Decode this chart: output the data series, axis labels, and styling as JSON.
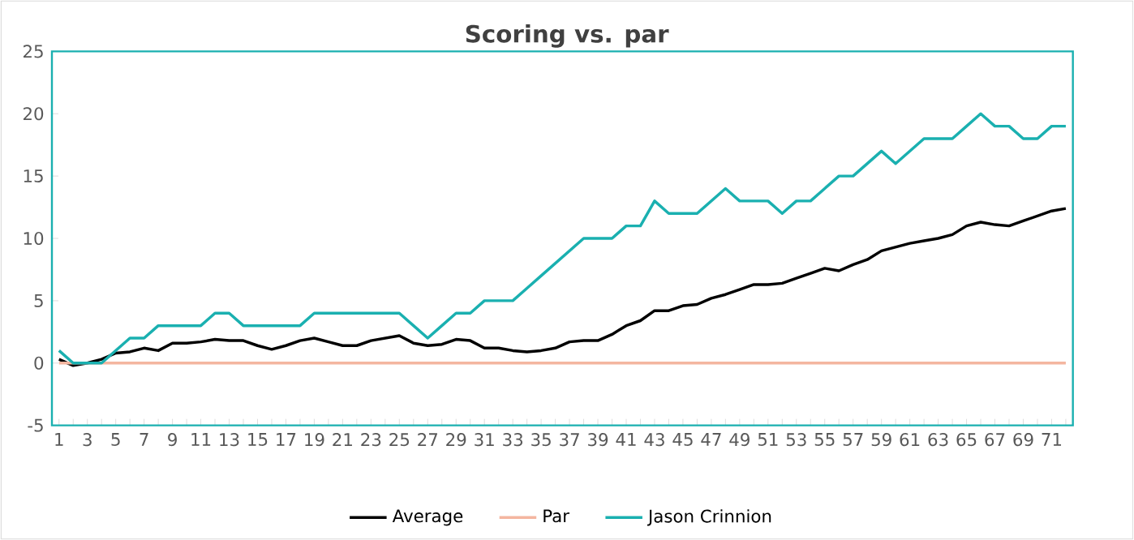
{
  "chart_data": {
    "type": "line",
    "title": "Scoring vs. par",
    "categories": [
      "1",
      null,
      "3",
      null,
      "5",
      null,
      "7",
      null,
      "9",
      null,
      "11",
      null,
      "13",
      null,
      "15",
      null,
      "17",
      null,
      "19",
      null,
      "21",
      null,
      "23",
      null,
      "25",
      null,
      "27",
      null,
      "29",
      null,
      "31",
      null,
      "33",
      null,
      "35",
      null,
      "37",
      null,
      "39",
      null,
      "41",
      null,
      "43",
      null,
      "45",
      null,
      "47",
      null,
      "49",
      null,
      "51",
      null,
      "53",
      null,
      "55",
      null,
      "57",
      null,
      "59",
      null,
      "61",
      null,
      "63",
      null,
      "65",
      null,
      "67",
      null,
      "69",
      null,
      "71",
      null
    ],
    "series": [
      {
        "name": "Average",
        "color": "#000000",
        "values": [
          0.3,
          -0.2,
          0,
          0.3,
          0.8,
          0.9,
          1.2,
          1.0,
          1.6,
          1.6,
          1.7,
          1.9,
          1.8,
          1.8,
          1.4,
          1.1,
          1.4,
          1.8,
          2.0,
          1.7,
          1.4,
          1.4,
          1.8,
          2.0,
          2.2,
          1.6,
          1.4,
          1.5,
          1.9,
          1.8,
          1.2,
          1.2,
          1.0,
          0.9,
          1.0,
          1.2,
          1.7,
          1.8,
          1.8,
          2.3,
          3.0,
          3.4,
          4.2,
          4.2,
          4.6,
          4.7,
          5.2,
          5.5,
          5.9,
          6.3,
          6.3,
          6.4,
          6.8,
          7.2,
          7.6,
          7.4,
          7.9,
          8.3,
          9.0,
          9.3,
          9.6,
          9.8,
          10.0,
          10.3,
          11.0,
          11.3,
          11.1,
          11.0,
          11.4,
          11.8,
          12.2,
          12.4
        ]
      },
      {
        "name": "Par",
        "color": "#f4b6a0",
        "values": [
          0,
          0,
          0,
          0,
          0,
          0,
          0,
          0,
          0,
          0,
          0,
          0,
          0,
          0,
          0,
          0,
          0,
          0,
          0,
          0,
          0,
          0,
          0,
          0,
          0,
          0,
          0,
          0,
          0,
          0,
          0,
          0,
          0,
          0,
          0,
          0,
          0,
          0,
          0,
          0,
          0,
          0,
          0,
          0,
          0,
          0,
          0,
          0,
          0,
          0,
          0,
          0,
          0,
          0,
          0,
          0,
          0,
          0,
          0,
          0,
          0,
          0,
          0,
          0,
          0,
          0,
          0,
          0,
          0,
          0,
          0,
          0
        ]
      },
      {
        "name": "Jason Crinnion",
        "color": "#1ab0b0",
        "values": [
          1,
          0,
          0,
          0,
          1,
          2,
          2,
          3,
          3,
          3,
          3,
          4,
          4,
          3,
          3,
          3,
          3,
          3,
          4,
          4,
          4,
          4,
          4,
          4,
          4,
          3,
          2,
          3,
          4,
          4,
          5,
          5,
          5,
          6,
          7,
          8,
          9,
          10,
          10,
          10,
          11,
          11,
          13,
          12,
          12,
          12,
          13,
          14,
          13,
          13,
          13,
          12,
          13,
          13,
          14,
          15,
          15,
          16,
          17,
          16,
          17,
          18,
          18,
          18,
          19,
          20,
          19,
          19,
          18,
          18,
          19,
          19
        ]
      }
    ],
    "ylim": [
      -5,
      25
    ],
    "yticks": [
      -5,
      0,
      5,
      10,
      15,
      20,
      25
    ],
    "grid": false,
    "legend": "bottom",
    "marker": "none",
    "line_style": "solid"
  }
}
